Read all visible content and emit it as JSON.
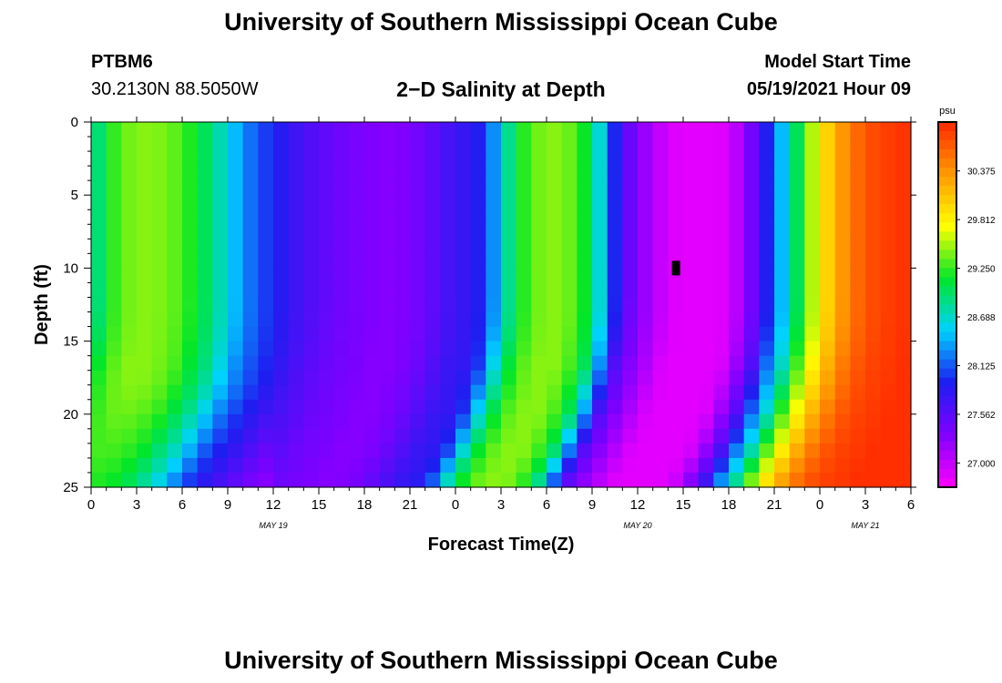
{
  "page": {
    "top_title": "University of Southern Mississippi Ocean Cube",
    "bottom_title": "University of Southern Mississippi Ocean Cube",
    "station_id": "PTBM6",
    "station_coords": "30.2130N  88.5050W",
    "model_start_label": "Model Start Time",
    "model_start_value": "05/19/2021 Hour 09"
  },
  "chart_data": {
    "type": "heatmap",
    "title": "2-D Salinity at Depth",
    "title_display": "2−D Salinity at Depth",
    "xlabel": "Forecast Time(Z)",
    "ylabel": "Depth (ft)",
    "x_range_hours": [
      0,
      54
    ],
    "y_range_ft": [
      0,
      25
    ],
    "x_ticks": [
      {
        "h": 0,
        "label": "0"
      },
      {
        "h": 3,
        "label": "3"
      },
      {
        "h": 6,
        "label": "6"
      },
      {
        "h": 9,
        "label": "9"
      },
      {
        "h": 12,
        "label": "12"
      },
      {
        "h": 15,
        "label": "15"
      },
      {
        "h": 18,
        "label": "18"
      },
      {
        "h": 21,
        "label": "21"
      },
      {
        "h": 24,
        "label": "0"
      },
      {
        "h": 27,
        "label": "3"
      },
      {
        "h": 30,
        "label": "6"
      },
      {
        "h": 33,
        "label": "9"
      },
      {
        "h": 36,
        "label": "12"
      },
      {
        "h": 39,
        "label": "15"
      },
      {
        "h": 42,
        "label": "18"
      },
      {
        "h": 45,
        "label": "21"
      },
      {
        "h": 48,
        "label": "0"
      },
      {
        "h": 51,
        "label": "3"
      },
      {
        "h": 54,
        "label": "6"
      }
    ],
    "date_labels": [
      {
        "h": 12,
        "label": "MAY 19"
      },
      {
        "h": 36,
        "label": "MAY 20"
      },
      {
        "h": 51,
        "label": "MAY 21"
      }
    ],
    "y_ticks": [
      0,
      5,
      10,
      15,
      20,
      25
    ],
    "colorbar": {
      "units": "psu",
      "min": 26.72,
      "max": 30.94,
      "labels": [
        "30.375",
        "29.812",
        "29.250",
        "28.688",
        "28.125",
        "27.562",
        "27.000"
      ],
      "label_values": [
        30.375,
        29.812,
        29.25,
        28.688,
        28.125,
        27.562,
        27.0
      ],
      "colors": [
        "#ff00ff",
        "#8000ff",
        "#1e1ef0",
        "#00d2ff",
        "#00e628",
        "#ffff00",
        "#ff9900",
        "#ff2800"
      ]
    },
    "surface_salinity_psu": [
      28.7,
      29.15,
      29.35,
      29.45,
      29.45,
      29.4,
      29.3,
      29.1,
      28.9,
      28.6,
      28.3,
      28.1,
      27.95,
      27.8,
      27.65,
      27.55,
      27.45,
      27.4,
      27.35,
      27.3,
      27.3,
      27.35,
      27.45,
      27.6,
      27.75,
      27.8,
      28.0,
      28.6,
      29.1,
      29.35,
      29.45,
      29.45,
      29.3,
      29.0,
      28.3,
      27.6,
      27.3,
      27.1,
      26.9,
      26.85,
      26.85,
      26.85,
      26.9,
      27.2,
      27.6,
      28.2,
      28.7,
      29.3,
      29.8,
      30.2,
      30.5,
      30.7,
      30.8,
      30.85,
      30.9
    ],
    "marker": {
      "h": 38.5,
      "depth_ft": 10
    }
  }
}
